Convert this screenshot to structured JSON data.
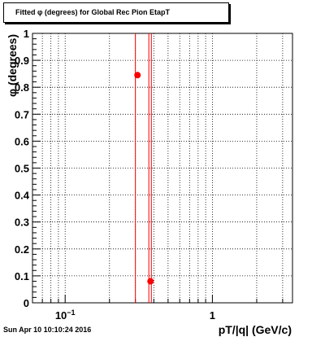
{
  "chart_data": {
    "type": "scatter",
    "title": "Fitted φ (degrees) for Global Rec Pion EtapT",
    "xlabel": "pT/|q| (GeV/c)",
    "ylabel": "φ (degrees)",
    "x_scale": "log",
    "xlim": [
      0.06,
      3.5
    ],
    "ylim": [
      0,
      1
    ],
    "grid": true,
    "y_ticks": [
      "0",
      "0.1",
      "0.2",
      "0.3",
      "0.4",
      "0.5",
      "0.6",
      "0.7",
      "0.8",
      "0.9",
      "1"
    ],
    "x_ticks": [
      {
        "value": 0.1,
        "base": "10",
        "exp": "−1"
      },
      {
        "value": 1,
        "base": "1",
        "exp": ""
      }
    ],
    "points": [
      {
        "x": 0.31,
        "y": 0.845
      },
      {
        "x": 0.38,
        "y": 0.08
      }
    ],
    "vertical_lines": [
      0.3,
      0.37,
      0.385
    ],
    "marker_color": "#ff0000",
    "line_color": "#ff0000"
  },
  "footer": {
    "timestamp": "Sun Apr 10 10:10:24 2016"
  }
}
